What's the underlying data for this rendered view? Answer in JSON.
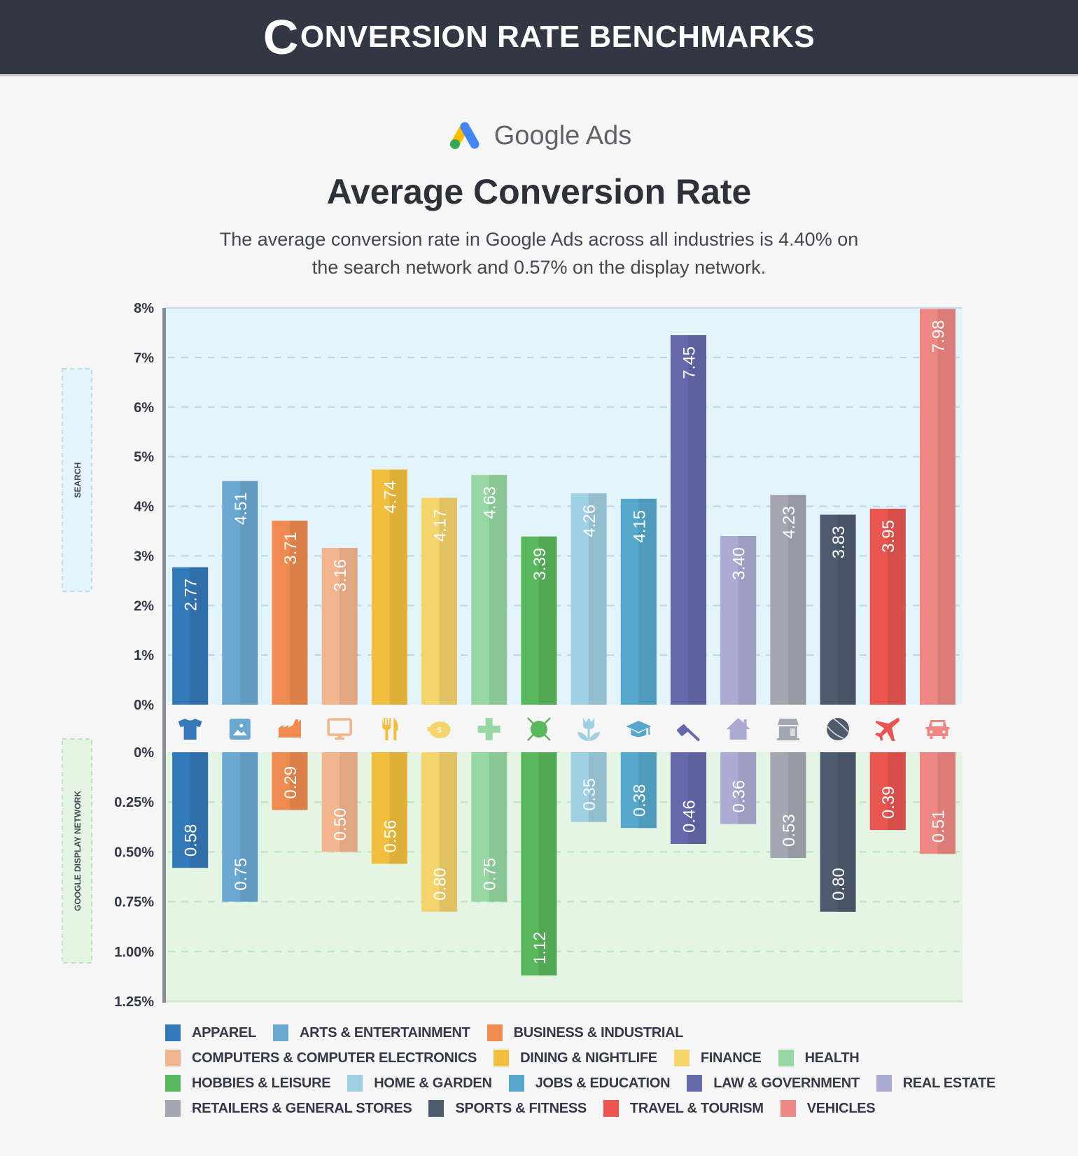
{
  "header": {
    "title_initial": "C",
    "title_rest": "ONVERSION RATE BENCHMARKS"
  },
  "brand": {
    "name": "Google Ads",
    "logo": "google-ads-logo"
  },
  "chart_data": {
    "type": "bar",
    "title": "Average Conversion Rate",
    "subtitle_lines": [
      "The average conversion rate in Google Ads across all industries is 4.40% on",
      "the search network and 0.57% on the display network."
    ],
    "categories": [
      "Apparel",
      "Arts & Entertainment",
      "Business & Industrial",
      "Computers & Computer Electronics",
      "Dining & Nightlife",
      "Finance",
      "Health",
      "Hobbies & Leisure",
      "Home & Garden",
      "Jobs & Education",
      "Law & Government",
      "Real Estate",
      "Retailers & General Stores",
      "Sports & Fitness",
      "Travel & Tourism",
      "Vehicles"
    ],
    "colors": [
      "#3378b8",
      "#6aa8d2",
      "#ef8b50",
      "#f3b58d",
      "#f2be3d",
      "#f6d46c",
      "#96d7a3",
      "#59b75c",
      "#9fcfe2",
      "#55a8cb",
      "#6568ab",
      "#ababd3",
      "#a4a7b2",
      "#4e5a6e",
      "#e9554f",
      "#ef8783"
    ],
    "icons": [
      "tshirt-icon",
      "image-icon",
      "factory-icon",
      "monitor-icon",
      "fork-knife-icon",
      "piggy-bank-icon",
      "plus-icon",
      "yarn-ball-icon",
      "tulip-icon",
      "graduation-cap-icon",
      "gavel-icon",
      "house-icon",
      "storefront-icon",
      "tennis-ball-icon",
      "airplane-icon",
      "car-icon"
    ],
    "series": [
      {
        "name": "Search",
        "values": [
          2.77,
          4.51,
          3.71,
          3.16,
          4.74,
          4.17,
          4.63,
          3.39,
          4.26,
          4.15,
          7.45,
          3.4,
          4.23,
          3.83,
          3.95,
          7.98
        ],
        "labels": [
          "2.77",
          "4.51",
          "3.71",
          "3.16",
          "4.74",
          "4.17",
          "4.63",
          "3.39",
          "4.26",
          "4.15",
          "7.45",
          "3.40",
          "4.23",
          "3.83",
          "3.95",
          "7.98"
        ]
      },
      {
        "name": "Google Display Network",
        "values": [
          0.58,
          0.75,
          0.29,
          0.5,
          0.56,
          0.8,
          0.75,
          1.12,
          0.35,
          0.38,
          0.46,
          0.36,
          0.53,
          0.8,
          0.39,
          0.51
        ],
        "labels": [
          "0.58",
          "0.75",
          "0.29",
          "0.50",
          "0.56",
          "0.80",
          "0.75",
          "1.12",
          "0.35",
          "0.38",
          "0.46",
          "0.36",
          "0.53",
          "0.80",
          "0.39",
          "0.51"
        ]
      }
    ],
    "search_axis": {
      "label": "SEARCH",
      "ylim": [
        0,
        8
      ],
      "ticks": [
        0,
        1,
        2,
        3,
        4,
        5,
        6,
        7,
        8
      ],
      "tick_labels": [
        "0%",
        "1%",
        "2%",
        "3%",
        "4%",
        "5%",
        "6%",
        "7%",
        "8%"
      ]
    },
    "display_axis": {
      "label": "GOOGLE DISPLAY NETWORK",
      "ylim": [
        0,
        1.25
      ],
      "ticks": [
        0,
        0.25,
        0.5,
        0.75,
        1.0,
        1.25
      ],
      "tick_labels": [
        "0%",
        "0.25%",
        "0.50%",
        "0.75%",
        "1.00%",
        "1.25%"
      ],
      "inverted": true
    },
    "grid": true,
    "legend_position": "bottom",
    "search_bg": "#e3f4fc",
    "display_bg": "#e4f5e3"
  },
  "legend": {
    "rows": [
      [
        0,
        1,
        2
      ],
      [
        3,
        4,
        5,
        6
      ],
      [
        7,
        8,
        9,
        10,
        11
      ],
      [
        12,
        13,
        14,
        15
      ]
    ],
    "labels": [
      "APPAREL",
      "ARTS & ENTERTAINMENT",
      "BUSINESS & INDUSTRIAL",
      "COMPUTERS & COMPUTER ELECTRONICS",
      "DINING & NIGHTLIFE",
      "FINANCE",
      "HEALTH",
      "HOBBIES & LEISURE",
      "HOME & GARDEN",
      "JOBS & EDUCATION",
      "LAW & GOVERNMENT",
      "REAL ESTATE",
      "RETAILERS & GENERAL STORES",
      "SPORTS & FITNESS",
      "TRAVEL & TOURISM",
      "VEHICLES"
    ]
  }
}
